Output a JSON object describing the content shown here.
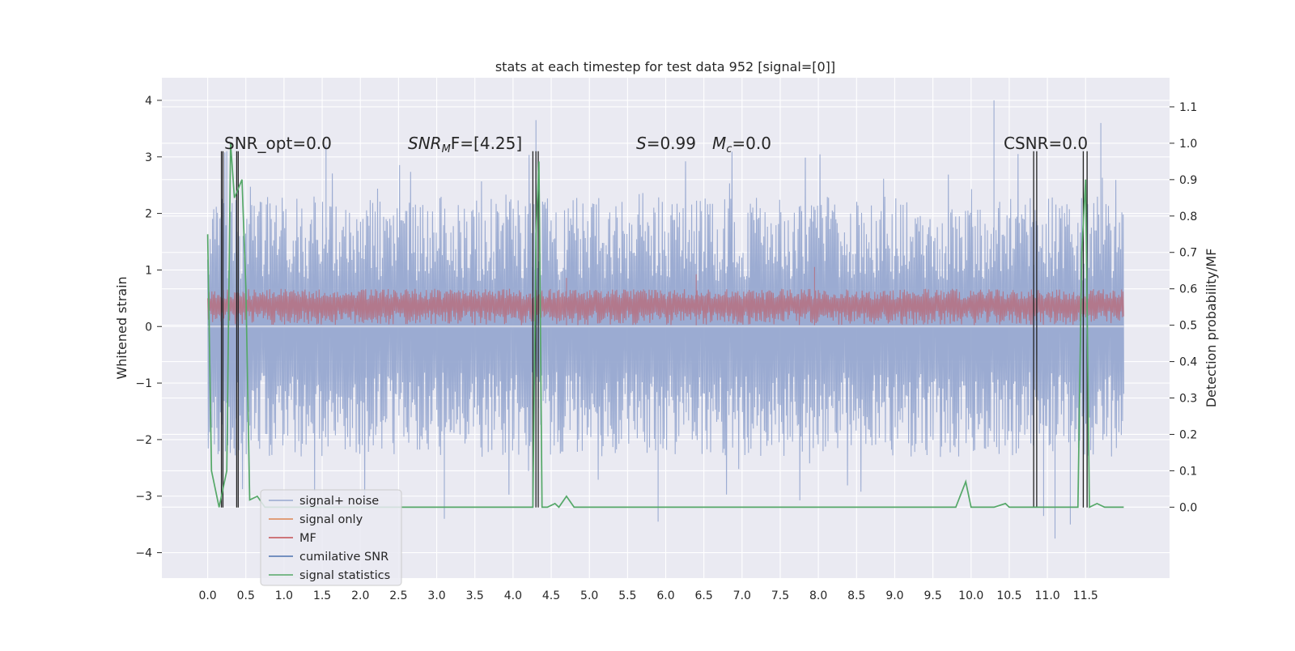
{
  "chart_data": {
    "type": "line",
    "title": "stats at each timestep for test data 952 [signal=[0]]",
    "xlabel": "",
    "ylabel": "Whitened strain",
    "y2label": "Detection probability/MF",
    "xlim": [
      -0.6,
      12.6
    ],
    "ylim": [
      -4.45,
      4.4
    ],
    "y2lim": [
      -0.195,
      1.18
    ],
    "x_ticks": [
      "0.0",
      "0.5",
      "1.0",
      "1.5",
      "2.0",
      "2.5",
      "3.0",
      "3.5",
      "4.0",
      "4.5",
      "5.0",
      "5.5",
      "6.0",
      "6.5",
      "7.0",
      "7.5",
      "8.0",
      "8.5",
      "9.0",
      "9.5",
      "10.0",
      "10.5",
      "11.0",
      "11.5"
    ],
    "y_ticks": [
      "4",
      "3",
      "2",
      "1",
      "0",
      "−1",
      "−2",
      "−3",
      "−4"
    ],
    "y2_ticks": [
      "1.1",
      "1.0",
      "0.9",
      "0.8",
      "0.7",
      "0.6",
      "0.5",
      "0.4",
      "0.3",
      "0.2",
      "0.1",
      "0.0"
    ],
    "grid": true,
    "legend_position": "lower-left",
    "annotations": {
      "snr_opt": "SNR_opt=0.0",
      "snr_mf_main": "SNR",
      "snr_mf_sub": "M",
      "snr_mf_rest": "F=[4.25]",
      "s_italic": "S",
      "s_rest": "=0.99",
      "mc_main": "M",
      "mc_sub": "c",
      "mc_rest": "=0.0",
      "csnr": "CSNR=0.0"
    },
    "series": [
      {
        "name": "signal+ noise",
        "color": "#97a8d0",
        "axis": "left",
        "x_range": [
          0.0,
          12.0
        ],
        "typical_abs_max": 2.3,
        "peaks": [
          [
            0.25,
            3.1
          ],
          [
            1.55,
            3.2
          ],
          [
            4.3,
            3.65
          ],
          [
            10.3,
            4.0
          ],
          [
            10.95,
            -3.35
          ],
          [
            11.1,
            -3.75
          ],
          [
            11.3,
            -3.5
          ],
          [
            11.7,
            3.6
          ],
          [
            5.9,
            -3.45
          ],
          [
            3.1,
            -3.4
          ]
        ]
      },
      {
        "name": "signal only",
        "color": "#dd8452",
        "axis": "left",
        "x": [
          0.0,
          12.0
        ],
        "y": [
          0.0,
          0.0
        ]
      },
      {
        "name": "MF",
        "color": "#c44e52",
        "axis": "right",
        "x_range": [
          0.0,
          12.0
        ],
        "band": [
          0.5,
          0.6
        ],
        "peaks": [
          [
            7.95,
            0.66
          ],
          [
            4.7,
            0.63
          ],
          [
            6.4,
            0.64
          ]
        ]
      },
      {
        "name": "cumilative SNR",
        "color": "#4c72b0",
        "axis": "left",
        "x": [
          0.0,
          12.0
        ],
        "y": [
          0.0,
          0.0
        ]
      },
      {
        "name": "signal statistics",
        "color": "#55a868",
        "axis": "right",
        "x": [
          0.0,
          0.05,
          0.15,
          0.25,
          0.3,
          0.35,
          0.45,
          0.5,
          0.55,
          0.65,
          0.75,
          0.85,
          1.0,
          1.5,
          2.0,
          3.0,
          4.0,
          4.26,
          4.3,
          4.34,
          4.38,
          4.45,
          4.55,
          4.6,
          4.7,
          4.8,
          5.0,
          5.5,
          6.0,
          7.0,
          8.0,
          9.0,
          9.8,
          9.93,
          10.0,
          10.3,
          10.45,
          10.5,
          10.6,
          10.75,
          10.9,
          11.0,
          11.3,
          11.4,
          11.45,
          11.5,
          11.55,
          11.65,
          11.75,
          11.9,
          12.0
        ],
        "y": [
          0.75,
          0.1,
          0.0,
          0.1,
          1.0,
          0.85,
          0.9,
          0.6,
          0.02,
          0.03,
          0.0,
          0.0,
          0.0,
          0.0,
          0.0,
          0.0,
          0.0,
          0.0,
          0.75,
          0.95,
          0.0,
          0.0,
          0.01,
          0.0,
          0.03,
          0.0,
          0.0,
          0.0,
          0.0,
          0.0,
          0.0,
          0.0,
          0.0,
          0.07,
          0.0,
          0.0,
          0.01,
          0.0,
          0.0,
          0.0,
          0.0,
          0.0,
          0.0,
          0.0,
          0.7,
          0.9,
          0.0,
          0.01,
          0.0,
          0.0,
          0.0
        ]
      }
    ],
    "vertical_markers": {
      "color": "#222222",
      "x": [
        0.18,
        0.2,
        0.38,
        0.4,
        4.26,
        4.3,
        4.33,
        10.82,
        10.86,
        11.47,
        11.52
      ],
      "y_top": 3.1,
      "y_bottom": -3.2
    }
  }
}
